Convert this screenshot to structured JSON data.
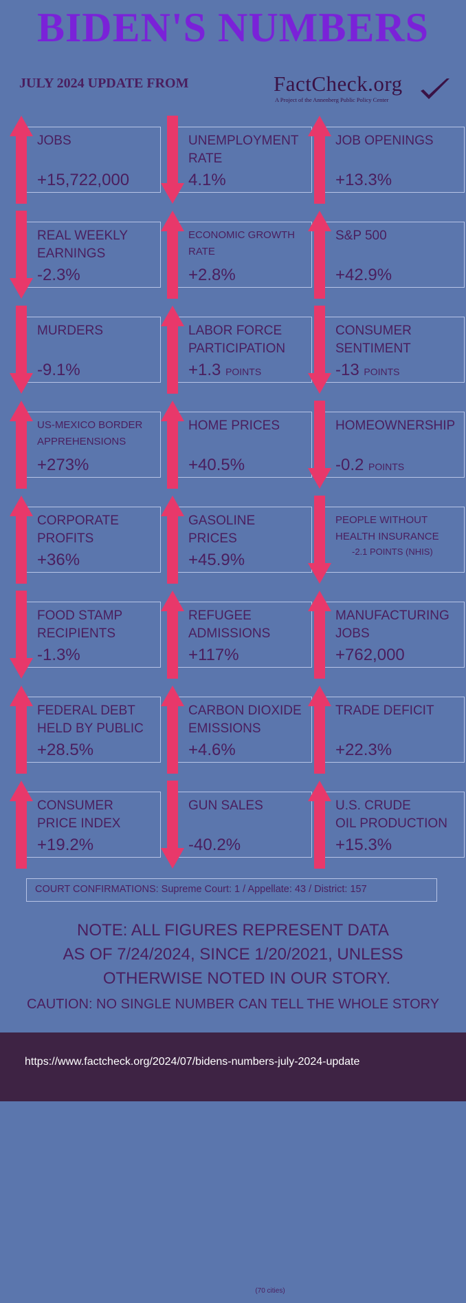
{
  "title": "BIDEN'S NUMBERS",
  "subtitle": "JULY 2024 UPDATE FROM",
  "logo": {
    "text": "FactCheck.org",
    "tagline": "A Project of the Annenberg Public Policy Center"
  },
  "colors": {
    "background": "#5b76ad",
    "arrow": "#e8386a",
    "title": "#7a22d8",
    "text": "#4a1e5e",
    "footer": "#3e2344"
  },
  "stats": [
    {
      "label": [
        "JOBS"
      ],
      "value": "+15,722,000",
      "unit": "",
      "note": "",
      "direction": "up"
    },
    {
      "label": [
        "UNEMPLOYMENT",
        "RATE"
      ],
      "value": "4.1%",
      "unit": "",
      "note": "",
      "direction": "down"
    },
    {
      "label": [
        "JOB OPENINGS"
      ],
      "value": "+13.3%",
      "unit": "",
      "note": "",
      "direction": "up"
    },
    {
      "label": [
        "REAL WEEKLY",
        "EARNINGS"
      ],
      "value": "-2.3%",
      "unit": "",
      "note": "",
      "direction": "down"
    },
    {
      "label": [
        "ECONOMIC GROWTH",
        "RATE"
      ],
      "value": "+2.8%",
      "unit": "",
      "note": "",
      "direction": "up"
    },
    {
      "label": [
        "S&P 500"
      ],
      "value": "+42.9%",
      "unit": "",
      "note": "",
      "direction": "up"
    },
    {
      "label": [
        "MURDERS"
      ],
      "value": "-9.1%",
      "unit": "",
      "note": "(70 cities)",
      "direction": "down"
    },
    {
      "label": [
        "LABOR FORCE",
        "PARTICIPATION"
      ],
      "value": "+1.3",
      "unit": "POINTS",
      "note": "",
      "direction": "up"
    },
    {
      "label": [
        "CONSUMER",
        "SENTIMENT"
      ],
      "value": "-13",
      "unit": "POINTS",
      "note": "",
      "direction": "down"
    },
    {
      "label": [
        "US-MEXICO BORDER",
        "APPREHENSIONS"
      ],
      "value": "+273%",
      "unit": "",
      "note": "",
      "direction": "up"
    },
    {
      "label": [
        "HOME PRICES"
      ],
      "value": "+40.5%",
      "unit": "",
      "note": "",
      "direction": "up"
    },
    {
      "label": [
        "HOMEOWNERSHIP"
      ],
      "value": "-0.2",
      "unit": "POINTS",
      "note": "",
      "direction": "down"
    },
    {
      "label": [
        "CORPORATE",
        "PROFITS"
      ],
      "value": "+36%",
      "unit": "",
      "note": "",
      "direction": "up"
    },
    {
      "label": [
        "GASOLINE",
        "PRICES"
      ],
      "value": "+45.9%",
      "unit": "",
      "note": "",
      "direction": "up"
    },
    {
      "label": [
        "PEOPLE WITHOUT",
        "HEALTH INSURANCE"
      ],
      "value": "-2.1 POINTS (NHIS)",
      "unit": "",
      "note": "",
      "direction": "down"
    },
    {
      "label": [
        "FOOD STAMP",
        "RECIPIENTS"
      ],
      "value": "-1.3%",
      "unit": "",
      "note": "",
      "direction": "down"
    },
    {
      "label": [
        "REFUGEE",
        "ADMISSIONS"
      ],
      "value": "+117%",
      "unit": "",
      "note": "",
      "direction": "up"
    },
    {
      "label": [
        "MANUFACTURING",
        "JOBS"
      ],
      "value": "+762,000",
      "unit": "",
      "note": "",
      "direction": "up"
    },
    {
      "label": [
        "FEDERAL DEBT",
        "HELD BY PUBLIC"
      ],
      "value": "+28.5%",
      "unit": "",
      "note": "",
      "direction": "up"
    },
    {
      "label": [
        "CARBON DIOXIDE",
        "EMISSIONS"
      ],
      "value": "+4.6%",
      "unit": "",
      "note": "",
      "direction": "up"
    },
    {
      "label": [
        "TRADE DEFICIT"
      ],
      "value": "+22.3%",
      "unit": "",
      "note": "",
      "direction": "up"
    },
    {
      "label": [
        "CONSUMER",
        "PRICE INDEX"
      ],
      "value": "+19.2%",
      "unit": "",
      "note": "",
      "direction": "up"
    },
    {
      "label": [
        "GUN SALES"
      ],
      "value": "-40.2%",
      "unit": "",
      "note": "",
      "direction": "down"
    },
    {
      "label": [
        "U.S. CRUDE",
        "OIL PRODUCTION"
      ],
      "value": "+15.3%",
      "unit": "",
      "note": "",
      "direction": "up"
    }
  ],
  "court": "COURT CONFIRMATIONS:  Supreme Court: 1 / Appellate: 43 / District: 157",
  "note": [
    "NOTE:  ALL FIGURES REPRESENT DATA",
    "AS OF 7/24/2024, SINCE 1/20/2021, UNLESS",
    "OTHERWISE NOTED IN OUR STORY."
  ],
  "caution": "CAUTION: NO SINGLE NUMBER CAN TELL THE WHOLE STORY",
  "url": "https://www.factcheck.org/2024/07/bidens-numbers-july-2024-update"
}
